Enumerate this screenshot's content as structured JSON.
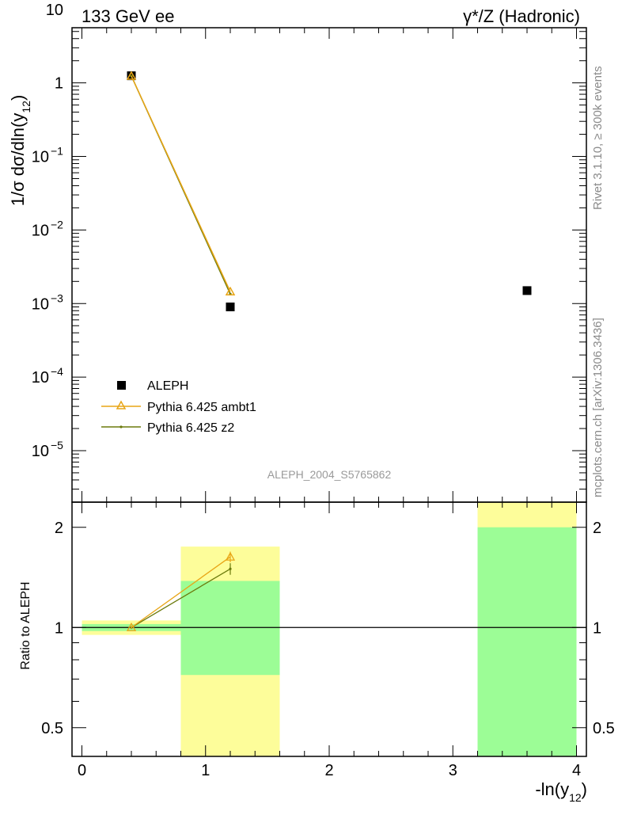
{
  "chart_data": {
    "type": "scatter",
    "top_left_label": "133 GeV ee",
    "top_right_label": "γ*/Z (Hadronic)",
    "ylabel_main": "1/σ dσ/dln(y",
    "ylabel_main_sub": "12",
    "ylabel_ratio": "Ratio to ALEPH",
    "xlabel": "-ln(y",
    "xlabel_sub": "12",
    "watermark": "ALEPH_2004_S5765862",
    "side_label_top": "Rivet 3.1.10, ≥ 300k events",
    "side_label_bottom": "mcplots.cern.ch [arXiv:1306.3436]",
    "xlim": [
      -0.08,
      4.08
    ],
    "xticks": [
      {
        "value": 0,
        "label": "0"
      },
      {
        "value": 1,
        "label": "1"
      },
      {
        "value": 2,
        "label": "2"
      },
      {
        "value": 3,
        "label": "3"
      },
      {
        "value": 4,
        "label": "4"
      }
    ],
    "main_ylim_log10": [
      -5.7,
      0.75
    ],
    "main_yticks": [
      {
        "exp": 1,
        "base": "10",
        "sup": ""
      },
      {
        "exp": 0,
        "base": "1",
        "sup": ""
      },
      {
        "exp": -1,
        "base": "10",
        "sup": "−1"
      },
      {
        "exp": -2,
        "base": "10",
        "sup": "−2"
      },
      {
        "exp": -3,
        "base": "10",
        "sup": "−3"
      },
      {
        "exp": -4,
        "base": "10",
        "sup": "−4"
      },
      {
        "exp": -5,
        "base": "10",
        "sup": "−5"
      }
    ],
    "ratio_ylim": [
      0.41,
      2.38
    ],
    "ratio_yticks": [
      {
        "value": 0.5,
        "label": "0.5"
      },
      {
        "value": 1,
        "label": "1"
      },
      {
        "value": 2,
        "label": "2"
      }
    ],
    "bins": [
      {
        "x_low": 0.0,
        "x_high": 0.8,
        "x_center": 0.4,
        "data": 1.25,
        "stat_low": 0.976,
        "stat_high": 1.024,
        "tot_low": 0.95,
        "tot_high": 1.05
      },
      {
        "x_low": 0.8,
        "x_high": 1.6,
        "x_center": 1.2,
        "data": 0.0009,
        "stat_low": 0.72,
        "stat_high": 1.38,
        "tot_low": 0.41,
        "tot_high": 1.75
      },
      {
        "x_low": 3.2,
        "x_high": 4.0,
        "x_center": 3.6,
        "data": 0.0015,
        "stat_low": 0.41,
        "stat_high": 2.0,
        "tot_low": 0.41,
        "tot_high": 2.38
      }
    ],
    "series": [
      {
        "name": "ALEPH",
        "marker": "square",
        "color": "#000000",
        "x": [
          0.4,
          1.2,
          3.6
        ],
        "y": [
          1.25,
          0.0009,
          0.0015
        ]
      },
      {
        "name": "Pythia 6.425 ambt1",
        "marker": "triangle",
        "color": "#e8a516",
        "x": [
          0.4,
          1.2
        ],
        "y": [
          1.24,
          0.00145
        ],
        "ratio": [
          1.0,
          1.63
        ],
        "ratio_err": [
          0.01,
          0.06
        ]
      },
      {
        "name": "Pythia 6.425 z2",
        "marker": "dot",
        "color": "#6b7a0c",
        "x": [
          0.4,
          1.2
        ],
        "y": [
          1.24,
          0.00135
        ],
        "ratio": [
          1.0,
          1.5
        ],
        "ratio_err": [
          0.01,
          0.06
        ]
      }
    ],
    "colors": {
      "stat_band": "#9cfd96",
      "tot_band": "#fdfd9a",
      "ref_line": "#000000"
    }
  }
}
